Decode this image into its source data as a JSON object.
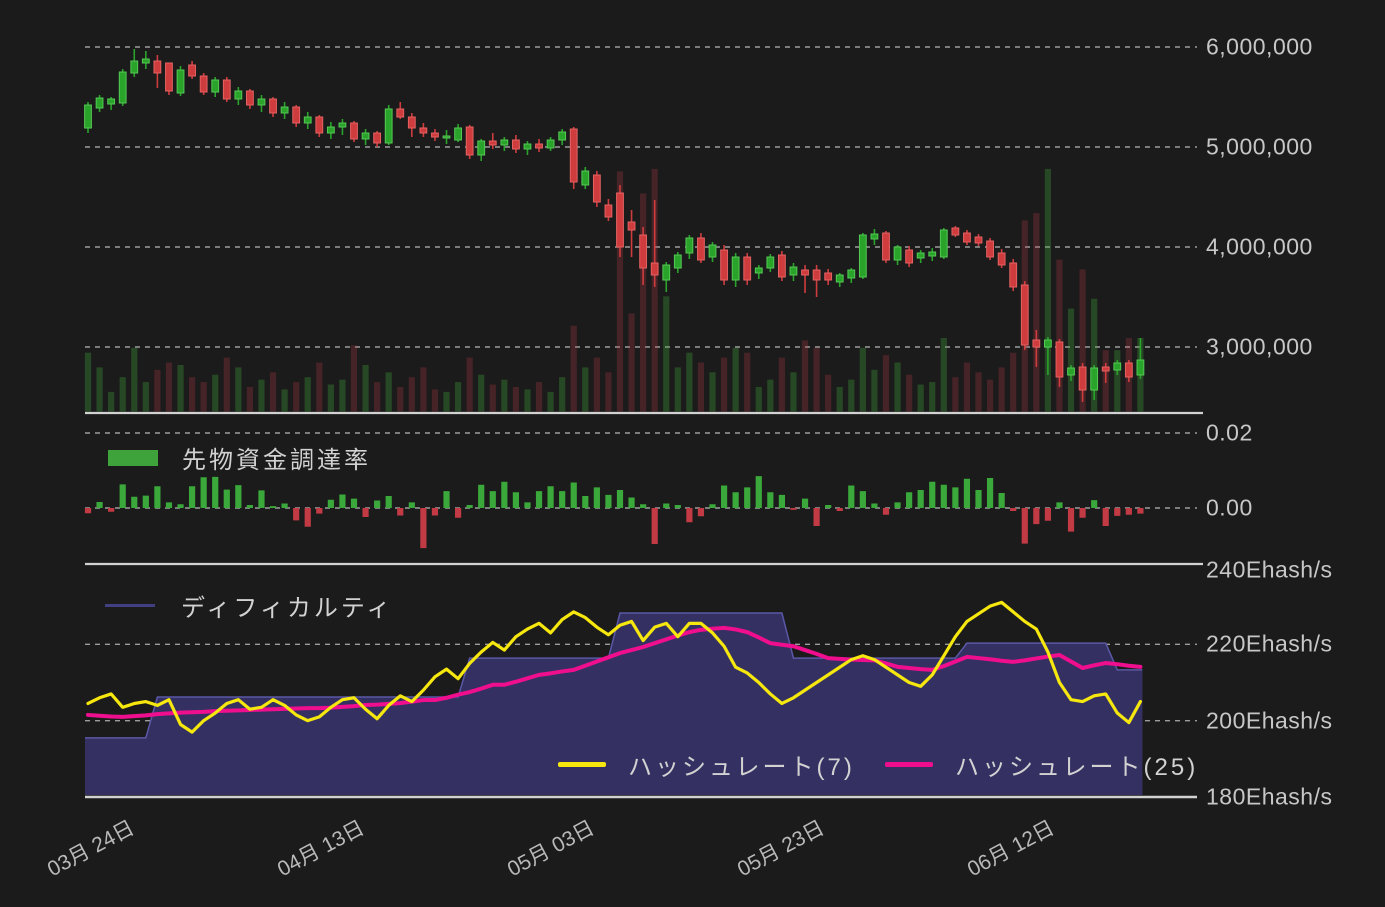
{
  "legends": {
    "funding": "先物資金調達率",
    "difficulty": "ディフィカルティ",
    "hashrate7": "ハッシュレート(7)",
    "hashrate25": "ハッシュレート(25)"
  },
  "y_axis": {
    "price_ticks": [
      {
        "label": "6,000,000",
        "value": 6.0
      },
      {
        "label": "5,000,000",
        "value": 5.0
      },
      {
        "label": "4,000,000",
        "value": 4.0
      },
      {
        "label": "3,000,000",
        "value": 3.0
      }
    ],
    "funding_ticks": [
      {
        "label": "0.02",
        "value": 0.02
      },
      {
        "label": "0.00",
        "value": 0.0
      }
    ],
    "hashrate_ticks": [
      {
        "label": "240Ehash/s",
        "value": 240
      },
      {
        "label": "220Ehash/s",
        "value": 220
      },
      {
        "label": "200Ehash/s",
        "value": 200
      },
      {
        "label": "180Ehash/s",
        "value": 180
      }
    ]
  },
  "x_axis": {
    "date_ticks": [
      "03月 24日",
      "04月 13日",
      "05月 03日",
      "05月 23日",
      "06月 12日"
    ]
  },
  "colors": {
    "background": "#1b1b1b",
    "grid": "#c9c9c9",
    "separator": "#d2d2d2",
    "candle_up_fill": "#2aa32b",
    "candle_up_stroke": "#55c855",
    "candle_down_fill": "#cf3c3e",
    "candle_down_stroke": "#e46262",
    "volume_up": "rgba(70,180,60,0.30)",
    "volume_down": "rgba(200,60,70,0.25)",
    "funding_up": "#3aa83a",
    "funding_down": "#c13a44",
    "difficulty_fill": "#343162",
    "difficulty_stroke": "#5a58a6",
    "hashrate7": "#f6e70e",
    "hashrate25": "#ef0e8e"
  },
  "chart_data": [
    {
      "type": "candlestick",
      "name": "price",
      "unit": "JPY (millions)",
      "ylim": [
        2.3,
        6.2
      ],
      "ohlc": [
        [
          5.19,
          5.45,
          5.14,
          5.42
        ],
        [
          5.39,
          5.52,
          5.35,
          5.49
        ],
        [
          5.43,
          5.5,
          5.37,
          5.48
        ],
        [
          5.44,
          5.78,
          5.41,
          5.75
        ],
        [
          5.74,
          5.98,
          5.7,
          5.86
        ],
        [
          5.84,
          5.96,
          5.78,
          5.88
        ],
        [
          5.86,
          5.92,
          5.59,
          5.74
        ],
        [
          5.84,
          5.84,
          5.52,
          5.56
        ],
        [
          5.54,
          5.81,
          5.51,
          5.77
        ],
        [
          5.82,
          5.86,
          5.68,
          5.71
        ],
        [
          5.71,
          5.74,
          5.52,
          5.55
        ],
        [
          5.55,
          5.7,
          5.5,
          5.67
        ],
        [
          5.67,
          5.7,
          5.45,
          5.48
        ],
        [
          5.48,
          5.6,
          5.42,
          5.56
        ],
        [
          5.56,
          5.58,
          5.38,
          5.42
        ],
        [
          5.42,
          5.52,
          5.35,
          5.48
        ],
        [
          5.48,
          5.5,
          5.3,
          5.34
        ],
        [
          5.34,
          5.45,
          5.28,
          5.4
        ],
        [
          5.4,
          5.42,
          5.2,
          5.24
        ],
        [
          5.24,
          5.35,
          5.18,
          5.3
        ],
        [
          5.3,
          5.32,
          5.1,
          5.14
        ],
        [
          5.14,
          5.25,
          5.08,
          5.2
        ],
        [
          5.2,
          5.28,
          5.12,
          5.24
        ],
        [
          5.24,
          5.26,
          5.05,
          5.08
        ],
        [
          5.08,
          5.18,
          5.02,
          5.14
        ],
        [
          5.14,
          5.16,
          5.0,
          5.04
        ],
        [
          5.04,
          5.42,
          5.02,
          5.38
        ],
        [
          5.38,
          5.45,
          5.28,
          5.3
        ],
        [
          5.3,
          5.34,
          5.1,
          5.19
        ],
        [
          5.19,
          5.24,
          5.1,
          5.14
        ],
        [
          5.14,
          5.18,
          5.06,
          5.1
        ],
        [
          5.1,
          5.17,
          5.03,
          5.11
        ],
        [
          5.07,
          5.23,
          5.05,
          5.19
        ],
        [
          5.2,
          5.22,
          4.88,
          4.92
        ],
        [
          4.92,
          5.08,
          4.86,
          5.06
        ],
        [
          5.06,
          5.14,
          4.98,
          5.02
        ],
        [
          5.02,
          5.1,
          4.96,
          5.07
        ],
        [
          5.07,
          5.12,
          4.94,
          4.98
        ],
        [
          4.98,
          5.06,
          4.92,
          5.03
        ],
        [
          5.03,
          5.08,
          4.95,
          4.99
        ],
        [
          4.99,
          5.1,
          4.96,
          5.07
        ],
        [
          5.07,
          5.18,
          5.02,
          5.15
        ],
        [
          5.18,
          5.2,
          4.58,
          4.65
        ],
        [
          4.62,
          4.8,
          4.58,
          4.76
        ],
        [
          4.72,
          4.76,
          4.4,
          4.45
        ],
        [
          4.42,
          4.48,
          4.26,
          4.3
        ],
        [
          4.54,
          4.62,
          3.9,
          4.0
        ],
        [
          4.25,
          4.37,
          3.9,
          4.17
        ],
        [
          4.12,
          4.2,
          3.62,
          3.79
        ],
        [
          3.84,
          4.47,
          3.6,
          3.72
        ],
        [
          3.67,
          3.85,
          3.55,
          3.82
        ],
        [
          3.79,
          3.95,
          3.74,
          3.92
        ],
        [
          3.94,
          4.12,
          3.88,
          4.09
        ],
        [
          4.09,
          4.14,
          3.84,
          3.87
        ],
        [
          3.9,
          4.05,
          3.85,
          4.02
        ],
        [
          3.97,
          4.02,
          3.62,
          3.67
        ],
        [
          3.67,
          3.94,
          3.6,
          3.9
        ],
        [
          3.9,
          3.94,
          3.62,
          3.67
        ],
        [
          3.74,
          3.82,
          3.68,
          3.79
        ],
        [
          3.79,
          3.93,
          3.75,
          3.9
        ],
        [
          3.92,
          3.96,
          3.66,
          3.7
        ],
        [
          3.72,
          3.84,
          3.66,
          3.8
        ],
        [
          3.77,
          3.82,
          3.54,
          3.72
        ],
        [
          3.77,
          3.82,
          3.5,
          3.67
        ],
        [
          3.74,
          3.78,
          3.62,
          3.67
        ],
        [
          3.65,
          3.74,
          3.6,
          3.72
        ],
        [
          3.69,
          3.79,
          3.64,
          3.77
        ],
        [
          3.7,
          4.14,
          3.68,
          4.12
        ],
        [
          4.08,
          4.18,
          4.02,
          4.13
        ],
        [
          4.14,
          4.16,
          3.84,
          3.87
        ],
        [
          3.87,
          4.02,
          3.82,
          4.0
        ],
        [
          3.97,
          4.01,
          3.8,
          3.84
        ],
        [
          3.89,
          3.97,
          3.84,
          3.94
        ],
        [
          3.91,
          3.99,
          3.86,
          3.95
        ],
        [
          3.9,
          4.19,
          3.88,
          4.17
        ],
        [
          4.19,
          4.21,
          4.1,
          4.12
        ],
        [
          4.14,
          4.17,
          4.02,
          4.05
        ],
        [
          4.1,
          4.13,
          4.01,
          4.04
        ],
        [
          4.06,
          4.09,
          3.87,
          3.9
        ],
        [
          3.94,
          3.98,
          3.79,
          3.82
        ],
        [
          3.84,
          3.88,
          3.56,
          3.6
        ],
        [
          3.62,
          3.66,
          2.97,
          3.02
        ],
        [
          3.07,
          3.17,
          2.8,
          3.0
        ],
        [
          3.0,
          3.1,
          2.72,
          3.07
        ],
        [
          3.05,
          3.08,
          2.6,
          2.7
        ],
        [
          2.72,
          2.82,
          2.66,
          2.79
        ],
        [
          2.8,
          2.84,
          2.45,
          2.57
        ],
        [
          2.57,
          2.82,
          2.47,
          2.79
        ],
        [
          2.8,
          2.84,
          2.64,
          2.76
        ],
        [
          2.77,
          2.87,
          2.72,
          2.84
        ],
        [
          2.84,
          2.87,
          2.65,
          2.7
        ],
        [
          2.72,
          3.09,
          2.68,
          2.87
        ]
      ],
      "volume_rel": [
        24,
        18,
        8,
        14,
        26,
        12,
        17,
        20,
        19,
        14,
        12,
        15,
        22,
        18,
        10,
        13,
        16,
        9,
        12,
        14,
        20,
        11,
        13,
        27,
        19,
        12,
        16,
        10,
        14,
        18,
        9,
        8,
        12,
        22,
        15,
        11,
        13,
        10,
        9,
        12,
        8,
        14,
        35,
        18,
        22,
        16,
        98,
        40,
        89,
        99,
        47,
        18,
        24,
        20,
        16,
        22,
        26,
        24,
        10,
        13,
        22,
        16,
        29,
        26,
        15,
        10,
        13,
        26,
        17,
        23,
        20,
        15,
        11,
        12,
        30,
        14,
        20,
        16,
        13,
        18,
        24,
        78,
        81,
        99,
        62,
        42,
        58,
        46,
        25,
        25,
        30,
        30
      ]
    },
    {
      "type": "bar",
      "name": "先物資金調達率",
      "ylim": [
        -0.012,
        0.025
      ],
      "values": [
        -0.0014,
        0.0016,
        -0.001,
        0.0063,
        0.003,
        0.0033,
        0.0058,
        0.0015,
        0.001,
        0.0058,
        0.0082,
        0.0083,
        0.0049,
        0.0061,
        0.0008,
        0.0047,
        0.0005,
        0.0012,
        -0.0033,
        -0.005,
        -0.0015,
        0.0022,
        0.0036,
        0.0025,
        -0.0024,
        0.002,
        0.0032,
        -0.002,
        0.0015,
        -0.0107,
        -0.002,
        0.0045,
        -0.0026,
        0.0008,
        0.0062,
        0.0045,
        0.007,
        0.0042,
        0.0015,
        0.0045,
        0.0058,
        0.0045,
        0.0068,
        0.0032,
        0.0055,
        0.0035,
        0.0048,
        0.0028,
        0.001,
        -0.0096,
        0.0012,
        0.0008,
        -0.0038,
        -0.0022,
        0.001,
        0.006,
        0.0042,
        0.0055,
        0.0085,
        0.0042,
        0.0035,
        -0.0005,
        0.0025,
        -0.0048,
        0.0008,
        -0.0008,
        0.006,
        0.0045,
        0.0012,
        -0.0018,
        0.0015,
        0.0042,
        0.0048,
        0.007,
        0.0062,
        0.0055,
        0.0078,
        0.0048,
        0.008,
        0.004,
        -0.0008,
        -0.0095,
        -0.0043,
        -0.0034,
        0.0015,
        -0.0063,
        -0.0026,
        0.0021,
        -0.0048,
        -0.0021,
        -0.0018,
        -0.0015
      ]
    },
    {
      "type": "area",
      "name": "ディフィカルティ",
      "unit": "Ehash/s",
      "steps": [
        {
          "start": 0,
          "end": 5,
          "value": 195.5
        },
        {
          "start": 6,
          "end": 32,
          "value": 206.2
        },
        {
          "start": 33,
          "end": 45,
          "value": 216.4
        },
        {
          "start": 46,
          "end": 60,
          "value": 228.2
        },
        {
          "start": 61,
          "end": 75,
          "value": 216.4
        },
        {
          "start": 76,
          "end": 88,
          "value": 220.3
        },
        {
          "start": 89,
          "end": 91,
          "value": 213.3
        }
      ]
    },
    {
      "type": "line",
      "name": "ハッシュレート(7)",
      "unit": "Ehash/s",
      "ylim": [
        180,
        240
      ],
      "values": [
        204.5,
        206,
        207,
        203.5,
        204.5,
        205,
        204,
        205.5,
        199,
        197,
        200,
        202,
        204.5,
        205.5,
        203,
        203.5,
        205.5,
        204,
        201.5,
        200,
        201,
        203.5,
        205.5,
        206,
        203,
        200.5,
        204,
        206.5,
        205,
        208,
        211.5,
        213.5,
        211,
        215,
        218,
        220.5,
        218.5,
        222,
        224,
        225.5,
        223,
        226.5,
        228.5,
        227,
        224.5,
        222.5,
        225,
        226,
        221,
        224.5,
        225.5,
        222,
        225.5,
        225.5,
        223,
        219.5,
        214,
        212.5,
        210,
        207,
        204.5,
        206,
        208,
        210,
        212,
        214,
        216,
        217,
        216,
        214,
        212,
        210,
        209,
        212,
        217,
        222,
        226,
        228,
        230,
        231,
        228.5,
        226,
        224,
        218,
        210,
        205.5,
        205,
        206.5,
        207,
        202,
        199.5,
        205
      ]
    },
    {
      "type": "line",
      "name": "ハッシュレート(25)",
      "unit": "Ehash/s",
      "ylim": [
        180,
        240
      ],
      "values": [
        201.5,
        201.3,
        201.1,
        201,
        201.2,
        201.4,
        201.7,
        201.9,
        202.1,
        202.2,
        202.3,
        202.5,
        202.6,
        202.7,
        202.8,
        202.9,
        203,
        203.1,
        203.2,
        203.3,
        203.3,
        203.4,
        203.6,
        203.8,
        204.1,
        204.2,
        204.4,
        204.6,
        205,
        205.4,
        205.4,
        206,
        206.8,
        207.5,
        208.4,
        209.4,
        209.4,
        210.2,
        211.1,
        212,
        212.4,
        212.9,
        213.3,
        214.4,
        215.5,
        216.6,
        217.7,
        218.5,
        219.3,
        220.3,
        221.3,
        222.3,
        223.2,
        223.8,
        224.1,
        224.3,
        223.9,
        223.2,
        221.8,
        220.3,
        219.9,
        219.5,
        218.5,
        217.5,
        216.4,
        216.2,
        216,
        215.9,
        215.8,
        215,
        214.1,
        213.8,
        213.5,
        213.3,
        214.3,
        215.5,
        216.7,
        216.4,
        216.1,
        215.7,
        215.4,
        215.8,
        216.3,
        216.8,
        217.2,
        215.5,
        213.8,
        214.5,
        215.1,
        214.8,
        214.4,
        214.1
      ]
    }
  ]
}
